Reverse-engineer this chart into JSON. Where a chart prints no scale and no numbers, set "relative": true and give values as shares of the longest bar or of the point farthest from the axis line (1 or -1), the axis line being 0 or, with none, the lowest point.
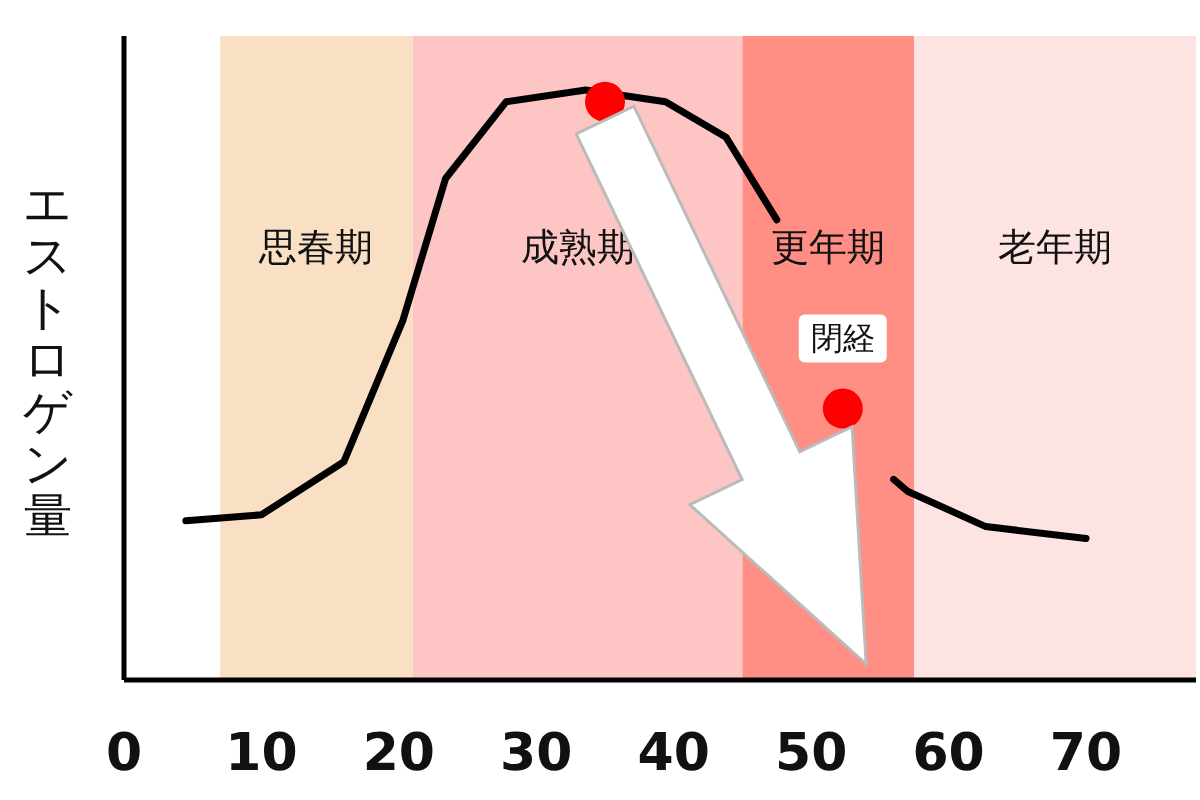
{
  "chart_data": {
    "type": "line",
    "ylabel": "エストロゲン量",
    "relative": true,
    "xlim": [
      0,
      78
    ],
    "xticks": [
      0,
      10,
      20,
      30,
      40,
      50,
      60,
      70
    ],
    "bands": [
      {
        "axis": "x",
        "from": 7,
        "to": 21,
        "label": "思春期",
        "color": "#f9dfc3"
      },
      {
        "axis": "x",
        "from": 21,
        "to": 45,
        "label": "成熟期",
        "color": "#fdc6c4"
      },
      {
        "axis": "x",
        "from": 45,
        "to": 57.5,
        "label": "更年期",
        "color": "#ff8e84"
      },
      {
        "axis": "x",
        "from": 57.5,
        "to": 78,
        "label": "老年期",
        "color": "#fde4e3"
      }
    ],
    "series": [
      {
        "color": "#000000",
        "x": [
          4.5,
          10,
          16,
          20.3,
          23.4,
          27.8,
          33.6,
          39.4,
          43.8,
          47.5,
          56,
          57,
          62.7,
          70
        ],
        "values": [
          0.27,
          0.28,
          0.37,
          0.61,
          0.85,
          0.98,
          1.0,
          0.98,
          0.92,
          0.78,
          0.34,
          0.32,
          0.26,
          0.24
        ]
      },
      {
        "type": "scatter",
        "color": "#ff0000",
        "marker": "circle",
        "x": [
          35,
          52.3
        ],
        "values": [
          0.98,
          0.46
        ]
      }
    ],
    "annotations": [
      {
        "text": "閉経",
        "x": 52.3,
        "y": 0.46
      }
    ]
  }
}
